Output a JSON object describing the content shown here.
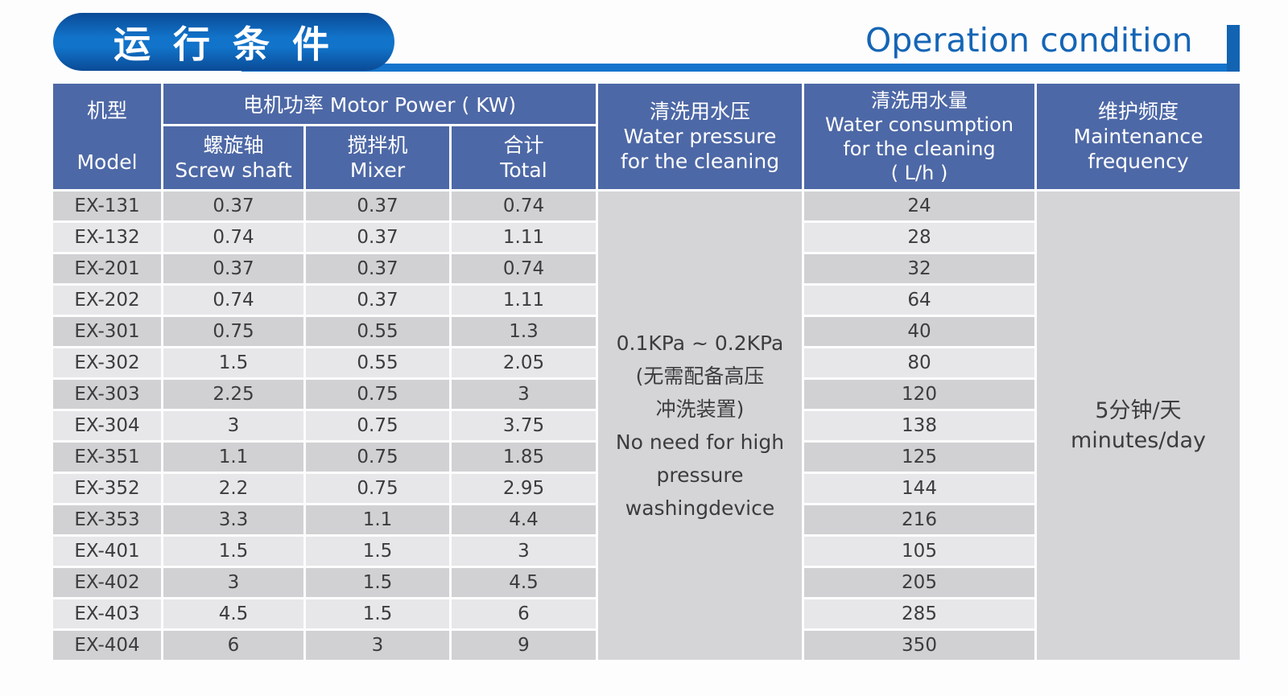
{
  "colors": {
    "pill_top": "#0a4a96",
    "pill_mid": "#1173c9",
    "pill_bottom": "#0a4a96",
    "bar_blue": "#1474cc",
    "endcap_blue": "#1263b2",
    "title_blue": "#1565b5",
    "header_blue": "#4d68a6",
    "stripe_dark": "#d1d1d4",
    "stripe_light": "#e7e6e9",
    "merged_gray": "#d5d4d7",
    "text_dark": "#3c3c3e"
  },
  "page": {
    "title_zh": "运 行 条 件",
    "title_en": "Operation condition"
  },
  "table": {
    "headers": {
      "model_zh": "机型",
      "model_en": "Model",
      "motor_power": "电机功率  Motor Power ( KW)",
      "screw_zh": "螺旋轴",
      "screw_en": "Screw shaft",
      "mixer_zh": "搅拌机",
      "mixer_en": "Mixer",
      "total_zh": "合计",
      "total_en": "Total",
      "pressure_zh": "清洗用水压",
      "pressure_en1": "Water pressure",
      "pressure_en2": "for the cleaning",
      "consumption_zh": "清洗用水量",
      "consumption_en1": "Water consumption",
      "consumption_en2": "for the cleaning",
      "consumption_unit": "( L/h )",
      "maintenance_zh": "维护频度",
      "maintenance_en1": "Maintenance",
      "maintenance_en2": "frequency"
    },
    "pressure_cell": {
      "lines": [
        "0.1KPa ~ 0.2KPa",
        "(无需配备高压",
        "冲洗装置)",
        "No need for high",
        "pressure",
        "washingdevice"
      ]
    },
    "maintenance_cell": {
      "lines": [
        "5分钟/天",
        "minutes/day"
      ]
    },
    "rows": [
      {
        "model": "EX-131",
        "screw": "0.37",
        "mixer": "0.37",
        "total": "0.74",
        "consumption": "24"
      },
      {
        "model": "EX-132",
        "screw": "0.74",
        "mixer": "0.37",
        "total": "1.11",
        "consumption": "28"
      },
      {
        "model": "EX-201",
        "screw": "0.37",
        "mixer": "0.37",
        "total": "0.74",
        "consumption": "32"
      },
      {
        "model": "EX-202",
        "screw": "0.74",
        "mixer": "0.37",
        "total": "1.11",
        "consumption": "64"
      },
      {
        "model": "EX-301",
        "screw": "0.75",
        "mixer": "0.55",
        "total": "1.3",
        "consumption": "40"
      },
      {
        "model": "EX-302",
        "screw": "1.5",
        "mixer": "0.55",
        "total": "2.05",
        "consumption": "80"
      },
      {
        "model": "EX-303",
        "screw": "2.25",
        "mixer": "0.75",
        "total": "3",
        "consumption": "120"
      },
      {
        "model": "EX-304",
        "screw": "3",
        "mixer": "0.75",
        "total": "3.75",
        "consumption": "138"
      },
      {
        "model": "EX-351",
        "screw": "1.1",
        "mixer": "0.75",
        "total": "1.85",
        "consumption": "125"
      },
      {
        "model": "EX-352",
        "screw": "2.2",
        "mixer": "0.75",
        "total": "2.95",
        "consumption": "144"
      },
      {
        "model": "EX-353",
        "screw": "3.3",
        "mixer": "1.1",
        "total": "4.4",
        "consumption": "216"
      },
      {
        "model": "EX-401",
        "screw": "1.5",
        "mixer": "1.5",
        "total": "3",
        "consumption": "105"
      },
      {
        "model": "EX-402",
        "screw": "3",
        "mixer": "1.5",
        "total": "4.5",
        "consumption": "205"
      },
      {
        "model": "EX-403",
        "screw": "4.5",
        "mixer": "1.5",
        "total": "6",
        "consumption": "285"
      },
      {
        "model": "EX-404",
        "screw": "6",
        "mixer": "3",
        "total": "9",
        "consumption": "350"
      }
    ]
  }
}
